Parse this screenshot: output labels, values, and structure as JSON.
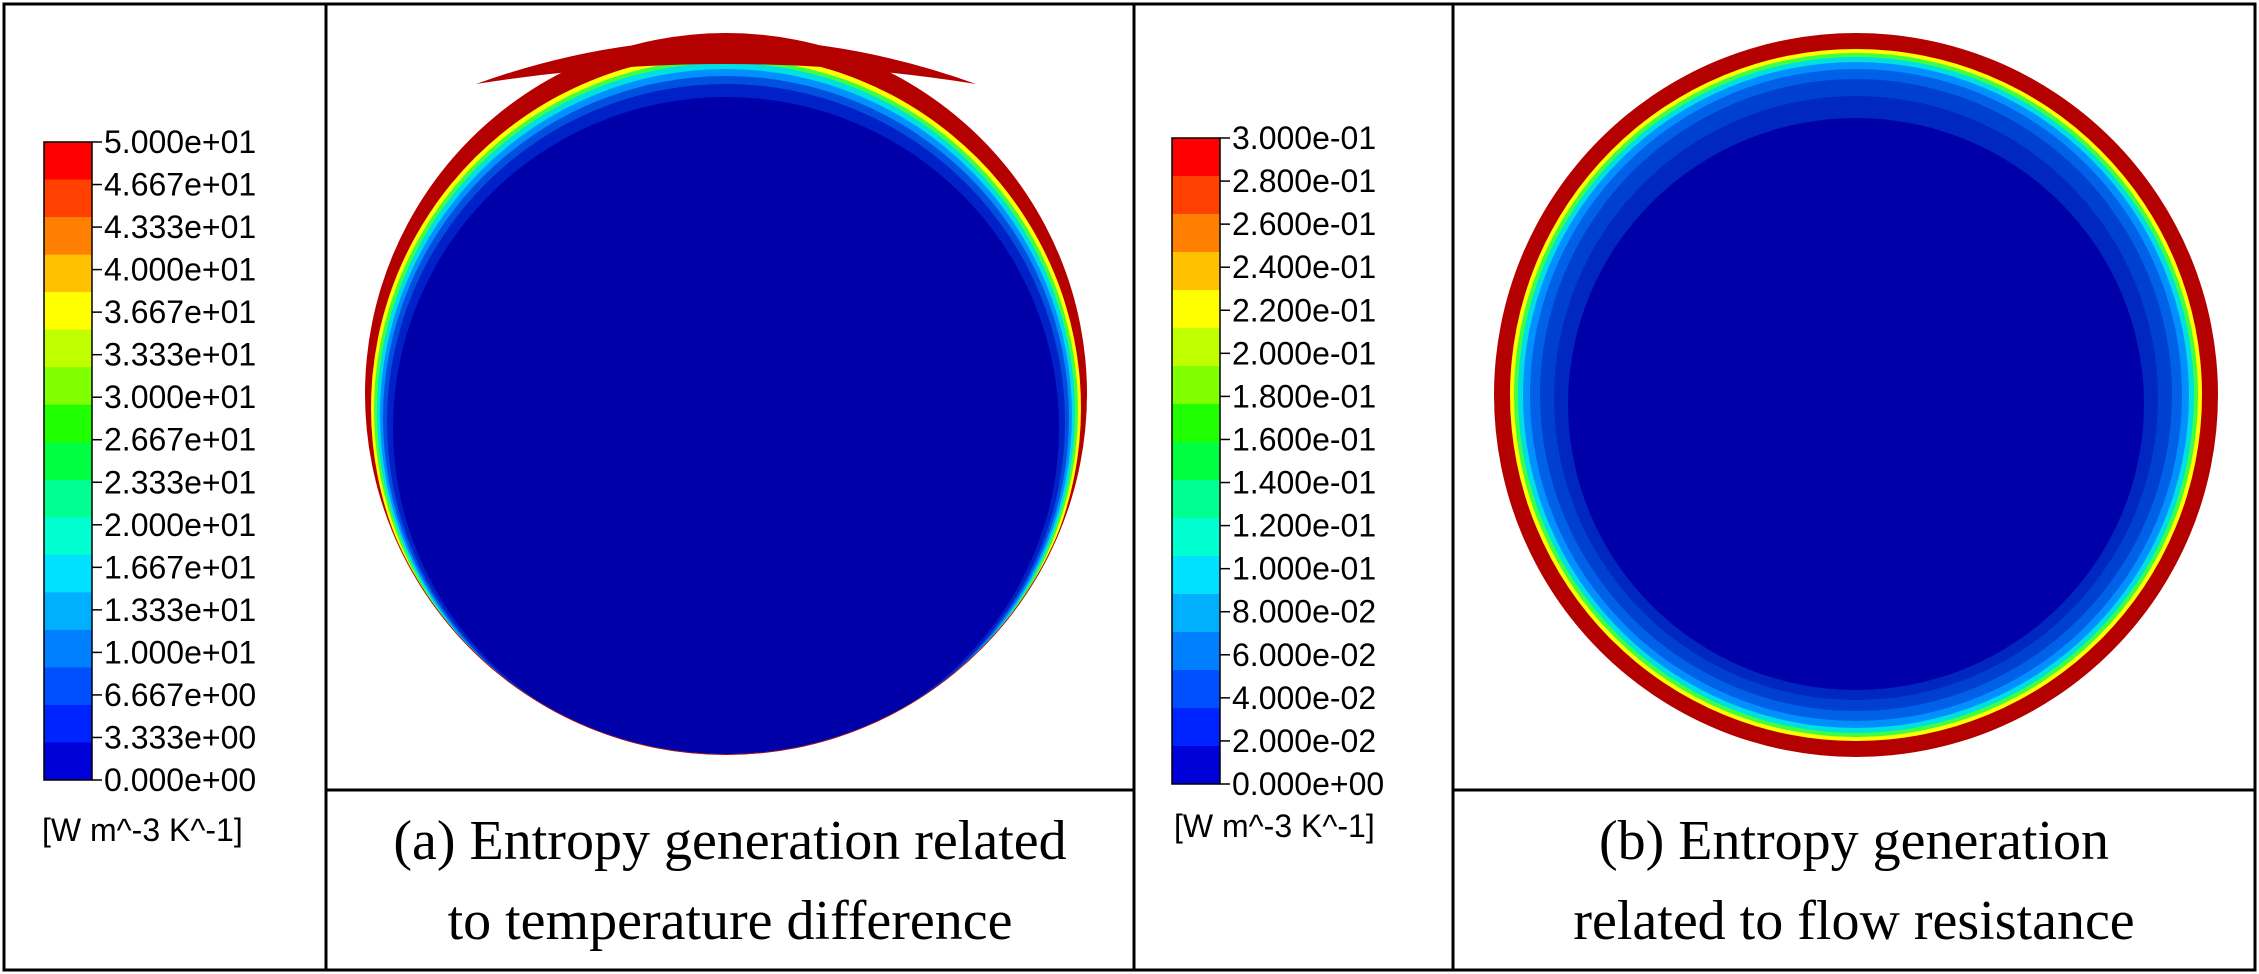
{
  "panels": [
    {
      "id": "a",
      "caption_line1": "(a) Entropy generation related",
      "caption_line2": "to temperature difference",
      "unit": "[W m^-3 K^-1]",
      "ticks": [
        "5.000e+01",
        "4.667e+01",
        "4.333e+01",
        "4.000e+01",
        "3.667e+01",
        "3.333e+01",
        "3.000e+01",
        "2.667e+01",
        "2.333e+01",
        "2.000e+01",
        "1.667e+01",
        "1.333e+01",
        "1.000e+01",
        "6.667e+00",
        "3.333e+00",
        "0.000e+00"
      ]
    },
    {
      "id": "b",
      "caption_line1": "(b) Entropy generation",
      "caption_line2": "related to flow resistance",
      "unit": "[W m^-3 K^-1]",
      "ticks": [
        "3.000e-01",
        "2.800e-01",
        "2.600e-01",
        "2.400e-01",
        "2.200e-01",
        "2.000e-01",
        "1.800e-01",
        "1.600e-01",
        "1.400e-01",
        "1.200e-01",
        "1.000e-01",
        "8.000e-02",
        "6.000e-02",
        "4.000e-02",
        "2.000e-02",
        "0.000e+00"
      ]
    }
  ],
  "colormap": [
    "#0000d8",
    "#0024ff",
    "#0050ff",
    "#0080ff",
    "#00b0ff",
    "#00e0ff",
    "#00ffd0",
    "#00ff90",
    "#00ff40",
    "#20ff00",
    "#80ff00",
    "#c0ff00",
    "#ffff00",
    "#ffc000",
    "#ff8000",
    "#ff4000",
    "#ff0000"
  ],
  "colors": {
    "field": "#0000a8",
    "edge": "#b50000",
    "border": "#000000"
  }
}
